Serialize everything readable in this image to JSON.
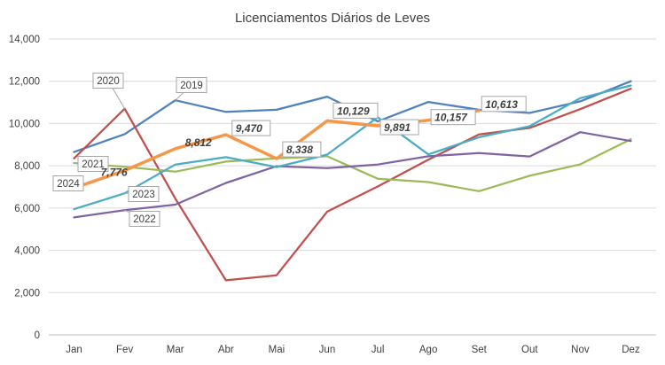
{
  "chart_data": {
    "type": "line",
    "title": "Licenciamentos Diários de Leves",
    "xlabel": "",
    "ylabel": "",
    "categories": [
      "Jan",
      "Fev",
      "Mar",
      "Abr",
      "Mai",
      "Jun",
      "Jul",
      "Ago",
      "Set",
      "Out",
      "Nov",
      "Dez"
    ],
    "ylim": [
      0,
      14000
    ],
    "yticks": [
      "0",
      "2,000",
      "4,000",
      "6,000",
      "8,000",
      "10,000",
      "12,000",
      "14,000"
    ],
    "grid": true,
    "legend": "none",
    "series": [
      {
        "name": "2019",
        "color": "#4f81bd",
        "values": [
          8650,
          9500,
          11100,
          10550,
          10650,
          11270,
          10100,
          11020,
          10650,
          10500,
          11050,
          12000
        ]
      },
      {
        "name": "2020",
        "color": "#c0504d",
        "values": [
          8350,
          10700,
          6450,
          2580,
          2820,
          5830,
          7020,
          8290,
          9480,
          9790,
          10680,
          11650
        ]
      },
      {
        "name": "2021",
        "color": "#9bbb59",
        "values": [
          8130,
          7950,
          7720,
          8200,
          8350,
          8450,
          7390,
          7230,
          6800,
          7530,
          8070,
          9260
        ]
      },
      {
        "name": "2022",
        "color": "#8064a2",
        "values": [
          5560,
          5900,
          6160,
          7190,
          7980,
          7890,
          8060,
          8450,
          8600,
          8440,
          9590,
          9170
        ]
      },
      {
        "name": "2023",
        "color": "#4bacc6",
        "values": [
          5950,
          6700,
          8060,
          8410,
          7940,
          8530,
          10300,
          8540,
          9350,
          9870,
          11200,
          11800
        ]
      },
      {
        "name": "2024",
        "color": "#f79646",
        "values": [
          6950,
          7776,
          8812,
          9470,
          8338,
          10129,
          9891,
          10157,
          10613,
          null,
          null,
          null
        ]
      }
    ],
    "data_labels_2024": [
      "7,776",
      "8,812",
      "9,470",
      "8,338",
      "10,129",
      "9,891",
      "10,157",
      "10,613"
    ]
  }
}
